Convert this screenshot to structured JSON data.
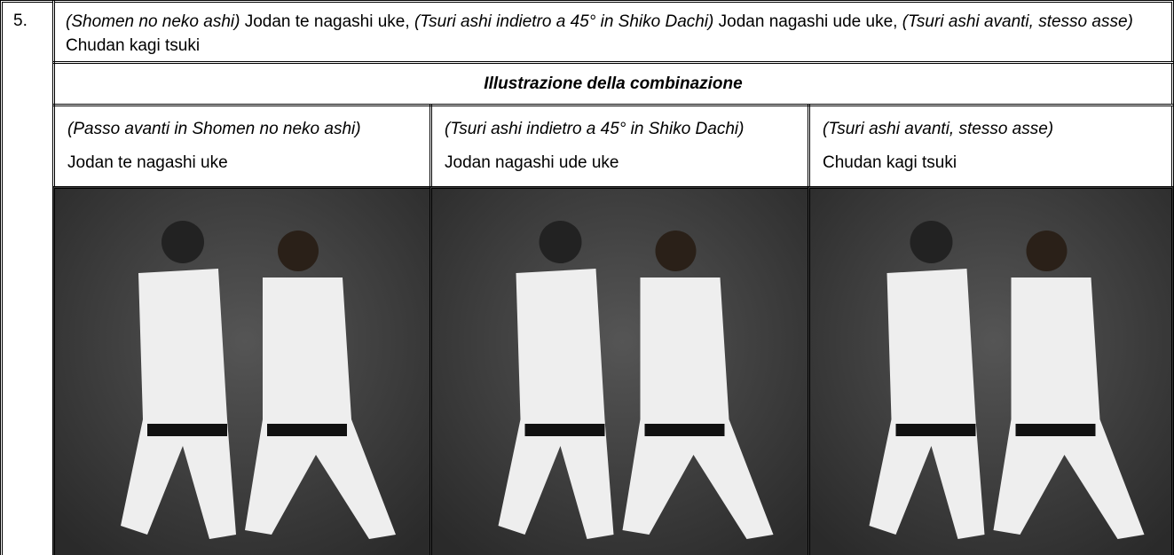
{
  "item": {
    "number": "5.",
    "description": [
      {
        "text": "(Shomen no neko ashi)",
        "style": "italic"
      },
      {
        "text": "Jodan te nagashi uke,",
        "style": "normal"
      },
      {
        "text": "(Tsuri ashi indietro a 45° in Shiko Dachi)",
        "style": "italic"
      },
      {
        "text": "Jodan nagashi ude uke,",
        "style": "normal"
      },
      {
        "text": "(Tsuri ashi avanti, stesso asse)",
        "style": "italic"
      },
      {
        "text": "Chudan kagi tsuki",
        "style": "normal"
      }
    ],
    "illustration_title": "Illustrazione della combinazione",
    "steps": [
      {
        "movement": "(Passo avanti in Shomen no neko ashi)",
        "technique": "Jodan te nagashi uke"
      },
      {
        "movement": "(Tsuri ashi indietro a 45° in Shiko Dachi)",
        "technique": "Jodan nagashi ude uke"
      },
      {
        "movement": "(Tsuri ashi avanti, stesso asse)",
        "technique": "Chudan kagi tsuki"
      }
    ]
  }
}
